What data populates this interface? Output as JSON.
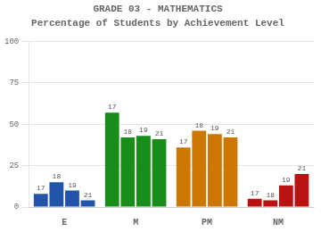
{
  "chart_data": {
    "type": "bar",
    "title": "GRADE 03 - MATHEMATICS",
    "subtitle": "Percentage of Students by Achievement Level",
    "categories": [
      "E",
      "M",
      "PM",
      "NM"
    ],
    "series": [
      {
        "name": "17",
        "values": [
          8,
          57,
          36,
          5
        ]
      },
      {
        "name": "18",
        "values": [
          15,
          42,
          46,
          4
        ]
      },
      {
        "name": "19",
        "values": [
          10,
          43,
          44,
          13
        ]
      },
      {
        "name": "21",
        "values": [
          4,
          41,
          42,
          20
        ]
      }
    ],
    "colors": [
      "#2255aa",
      "#1a8c1a",
      "#cc7700",
      "#bb1111"
    ],
    "ylim": [
      0,
      100
    ],
    "yticks": [
      0,
      25,
      50,
      75,
      100
    ],
    "grid": true
  }
}
